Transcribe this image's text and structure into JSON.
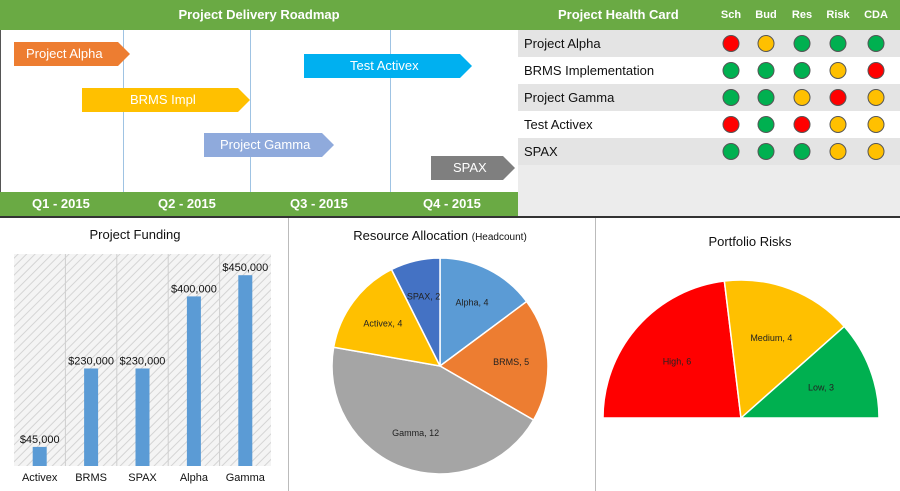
{
  "roadmap": {
    "title": "Project Delivery Roadmap",
    "quarters": [
      "Q1 - 2015",
      "Q2 - 2015",
      "Q3 - 2015",
      "Q4 - 2015"
    ],
    "tasks": [
      {
        "label": "Project Alpha",
        "color": "#ed7d31"
      },
      {
        "label": "Test Activex",
        "color": "#00b0f0"
      },
      {
        "label": "BRMS Impl",
        "color": "#ffc000"
      },
      {
        "label": "Project Gamma",
        "color": "#8faadc"
      },
      {
        "label": "SPAX",
        "color": "#7f7f7f"
      }
    ]
  },
  "health_card": {
    "title": "Project Health Card",
    "columns": [
      "Sch",
      "Bud",
      "Res",
      "Risk",
      "CDA"
    ],
    "rows": [
      {
        "project": "Project Alpha",
        "status": [
          "red",
          "yellow",
          "green",
          "green",
          "green"
        ]
      },
      {
        "project": "BRMS Implementation",
        "status": [
          "green",
          "green",
          "green",
          "yellow",
          "red"
        ]
      },
      {
        "project": "Project Gamma",
        "status": [
          "green",
          "green",
          "yellow",
          "red",
          "yellow"
        ]
      },
      {
        "project": "Test Activex",
        "status": [
          "red",
          "green",
          "red",
          "yellow",
          "yellow"
        ]
      },
      {
        "project": "SPAX",
        "status": [
          "green",
          "green",
          "green",
          "yellow",
          "yellow"
        ]
      }
    ],
    "status_colors": {
      "red": "#ff0000",
      "yellow": "#ffc000",
      "green": "#00b050"
    }
  },
  "funding": {
    "title": "Project Funding",
    "chart_data": {
      "type": "bar",
      "title": "Project Funding",
      "categories": [
        "Activex",
        "BRMS",
        "SPAX",
        "Alpha",
        "Gamma"
      ],
      "values": [
        45000,
        230000,
        230000,
        400000,
        450000
      ],
      "labels": [
        "$45,000",
        "$230,000",
        "$230,000",
        "$400,000",
        "$450,000"
      ],
      "ylim": [
        0,
        500000
      ],
      "color": "#5b9bd5"
    }
  },
  "resources": {
    "title": "Resource Allocation",
    "subtitle": "(Headcount)",
    "chart_data": {
      "type": "pie",
      "title": "Resource Allocation (Headcount)",
      "slices": [
        {
          "name": "Alpha",
          "value": 4,
          "label": "Alpha, 4",
          "color": "#5b9bd5"
        },
        {
          "name": "BRMS",
          "value": 5,
          "label": "BRMS, 5",
          "color": "#ed7d31"
        },
        {
          "name": "Gamma",
          "value": 12,
          "label": "Gamma, 12",
          "color": "#a5a5a5"
        },
        {
          "name": "Activex",
          "value": 4,
          "label": "Activex, 4",
          "color": "#ffc000"
        },
        {
          "name": "SPAX",
          "value": 2,
          "label": "SPAX, 2",
          "color": "#4472c4"
        }
      ]
    }
  },
  "risks": {
    "title": "Portfolio Risks",
    "chart_data": {
      "type": "pie",
      "title": "Portfolio Risks",
      "slices": [
        {
          "name": "High",
          "value": 6,
          "label": "High, 6",
          "color": "#ff0000"
        },
        {
          "name": "Medium",
          "value": 4,
          "label": "Medium, 4",
          "color": "#ffc000"
        },
        {
          "name": "Low",
          "value": 3,
          "label": "Low, 3",
          "color": "#00b050"
        }
      ]
    }
  }
}
